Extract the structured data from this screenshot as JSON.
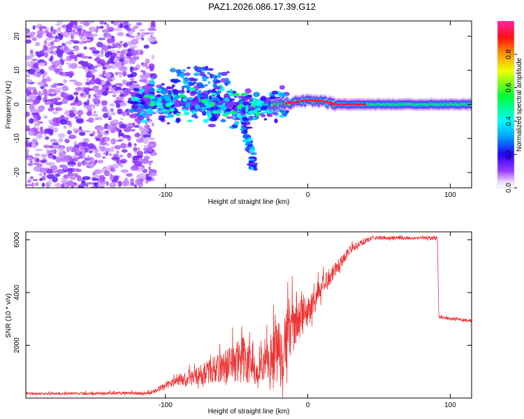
{
  "title": "PAZ1.2026.086.17.39.G12",
  "chart_data": [
    {
      "type": "heatmap",
      "name": "spectrogram",
      "title": "PAZ1.2026.086.17.39.G12",
      "xlabel": "Height of straight line (km)",
      "ylabel": "Frequency (Hz)",
      "xlim": [
        -198,
        115
      ],
      "ylim": [
        -24.5,
        24.5
      ],
      "xticks": [
        -100,
        0,
        100
      ],
      "xtick_labels": [
        "-100",
        "0",
        "100"
      ],
      "yticks": [
        -20,
        -10,
        0,
        10,
        20
      ],
      "ytick_labels": [
        "-20",
        "-10",
        "0",
        "10",
        "20"
      ],
      "colorbar": {
        "label": "Normalized spectral amplitude",
        "range": [
          0.0,
          1.0
        ],
        "ticks": [
          0.0,
          0.2,
          0.4,
          0.6,
          0.8
        ],
        "tick_labels": [
          "0.0",
          "0.2",
          "0.4",
          "0.6",
          "0.8"
        ]
      },
      "ridge": [
        {
          "x": -120,
          "y": 0.5
        },
        {
          "x": -100,
          "y": 0.8
        },
        {
          "x": -80,
          "y": 0.5
        },
        {
          "x": -60,
          "y": 0.0
        },
        {
          "x": -40,
          "y": -1.0
        },
        {
          "x": -20,
          "y": 0.0
        },
        {
          "x": 0,
          "y": 1.2
        },
        {
          "x": 10,
          "y": 1.0
        },
        {
          "x": 20,
          "y": 0.0
        },
        {
          "x": 60,
          "y": 0.0
        },
        {
          "x": 100,
          "y": 0.0
        }
      ],
      "branch": [
        {
          "x": -45,
          "y": -3
        },
        {
          "x": -40,
          "y": -10
        },
        {
          "x": -38,
          "y": -19
        }
      ]
    },
    {
      "type": "line",
      "name": "snr",
      "xlabel": "Height of straight line (km)",
      "ylabel": "SNR (10 * v/v)",
      "xlim": [
        -198,
        115
      ],
      "ylim": [
        0,
        6300
      ],
      "xticks": [
        -100,
        0,
        100
      ],
      "xtick_labels": [
        "-100",
        "0",
        "100"
      ],
      "yticks": [
        2000,
        4000,
        6000
      ],
      "ytick_labels": [
        "2000",
        "4000",
        "6000"
      ],
      "color": "#ee3333",
      "envelope": [
        {
          "x": -198,
          "base": 150,
          "noise": 80
        },
        {
          "x": -110,
          "base": 170,
          "noise": 120
        },
        {
          "x": -100,
          "base": 450,
          "noise": 250
        },
        {
          "x": -80,
          "base": 700,
          "noise": 600
        },
        {
          "x": -60,
          "base": 1000,
          "noise": 1200
        },
        {
          "x": -45,
          "base": 1200,
          "noise": 2000
        },
        {
          "x": -35,
          "base": 700,
          "noise": 900
        },
        {
          "x": -20,
          "base": 1300,
          "noise": 3000
        },
        {
          "x": -10,
          "base": 2500,
          "noise": 1800
        },
        {
          "x": 0,
          "base": 3100,
          "noise": 1200
        },
        {
          "x": 15,
          "base": 4500,
          "noise": 700
        },
        {
          "x": 30,
          "base": 5600,
          "noise": 300
        },
        {
          "x": 45,
          "base": 6050,
          "noise": 150
        },
        {
          "x": 91,
          "base": 6050,
          "noise": 120
        },
        {
          "x": 92,
          "base": 3050,
          "noise": 100
        },
        {
          "x": 115,
          "base": 2900,
          "noise": 100
        }
      ]
    }
  ]
}
